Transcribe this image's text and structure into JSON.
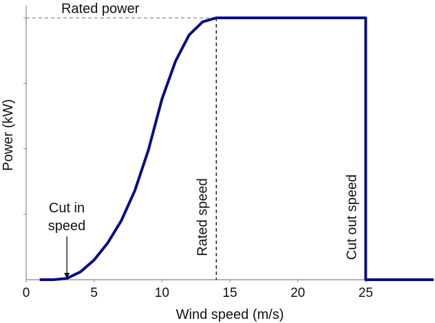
{
  "chart_data": {
    "type": "line",
    "title": "",
    "xlabel": "Wind speed (m/s)",
    "ylabel": "Power (kW)",
    "xlim": [
      0,
      30
    ],
    "ylim": [
      0,
      1
    ],
    "x_ticks": [
      0,
      5,
      10,
      15,
      20,
      25
    ],
    "y_ticks_unlabeled": [
      0.25,
      0.5,
      0.75,
      1.0
    ],
    "grid": false,
    "series": [
      {
        "color": "#0a0a8c",
        "x": [
          1,
          2,
          3,
          4,
          5,
          6,
          7,
          8,
          9,
          10,
          11,
          12,
          13,
          14,
          25,
          25,
          30
        ],
        "y": [
          0,
          0,
          0.005,
          0.03,
          0.075,
          0.14,
          0.225,
          0.34,
          0.495,
          0.69,
          0.835,
          0.935,
          0.985,
          1.0,
          1.0,
          0,
          0
        ]
      }
    ],
    "annotations": {
      "rated_power": "Rated power",
      "cut_in": [
        "Cut in",
        "speed"
      ],
      "rated_speed": "Rated speed",
      "cut_out": "Cut out speed"
    },
    "reference_x": {
      "cut_in": 3,
      "rated": 14,
      "cut_out": 25
    },
    "reference_y": {
      "rated_power": 1.0
    }
  }
}
